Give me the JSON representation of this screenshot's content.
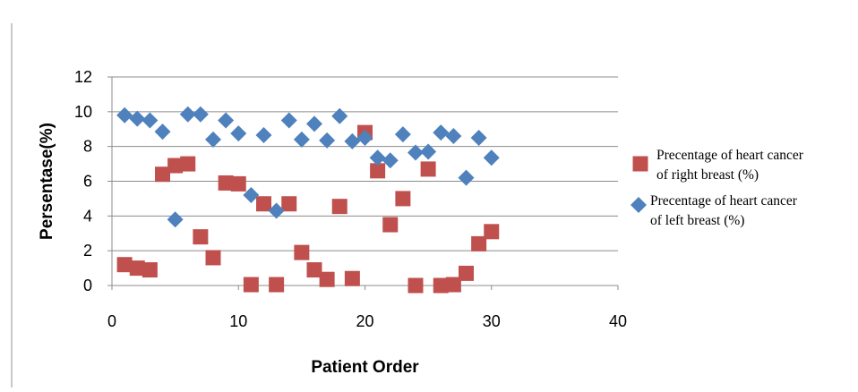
{
  "chart_data": {
    "type": "scatter",
    "title": "",
    "xlabel": "Patient Order",
    "ylabel": "Persentase(%)",
    "xlim": [
      0,
      40
    ],
    "ylim": [
      0,
      12
    ],
    "xticks": [
      0,
      10,
      20,
      30,
      40
    ],
    "yticks": [
      0,
      2,
      4,
      6,
      8,
      10,
      12
    ],
    "grid": true,
    "legend_position": "right",
    "series": [
      {
        "name": "Precentage of heart cancer of right breast (%)",
        "legend_lines": [
          "Precentage of heart cancer",
          "of right breast (%)"
        ],
        "marker": "square",
        "color": "#c0504d",
        "points": [
          [
            1,
            1.2
          ],
          [
            2,
            1.0
          ],
          [
            3,
            0.9
          ],
          [
            4,
            6.4
          ],
          [
            5,
            6.9
          ],
          [
            6,
            7.0
          ],
          [
            7,
            2.8
          ],
          [
            8,
            1.6
          ],
          [
            9,
            5.9
          ],
          [
            10,
            5.85
          ],
          [
            11,
            0.05
          ],
          [
            12,
            4.7
          ],
          [
            13,
            0.05
          ],
          [
            14,
            4.7
          ],
          [
            15,
            1.9
          ],
          [
            16,
            0.9
          ],
          [
            17,
            0.35
          ],
          [
            18,
            4.55
          ],
          [
            19,
            0.4
          ],
          [
            20,
            8.8
          ],
          [
            21,
            6.6
          ],
          [
            22,
            3.5
          ],
          [
            23,
            5.0
          ],
          [
            24,
            0.0
          ],
          [
            25,
            6.7
          ],
          [
            26,
            0.0
          ],
          [
            27,
            0.05
          ],
          [
            28,
            0.7
          ],
          [
            29,
            2.4
          ],
          [
            30,
            3.1
          ]
        ]
      },
      {
        "name": "Precentage of heart cancer of left breast (%)",
        "legend_lines": [
          "Precentage of heart cancer",
          "of left breast (%)"
        ],
        "marker": "diamond",
        "color": "#4f81bd",
        "points": [
          [
            1,
            9.8
          ],
          [
            2,
            9.6
          ],
          [
            3,
            9.5
          ],
          [
            4,
            8.85
          ],
          [
            5,
            3.8
          ],
          [
            6,
            9.85
          ],
          [
            7,
            9.85
          ],
          [
            8,
            8.4
          ],
          [
            9,
            9.5
          ],
          [
            10,
            8.75
          ],
          [
            11,
            5.2
          ],
          [
            12,
            8.65
          ],
          [
            13,
            4.3
          ],
          [
            14,
            9.5
          ],
          [
            15,
            8.4
          ],
          [
            16,
            9.3
          ],
          [
            17,
            8.35
          ],
          [
            18,
            9.75
          ],
          [
            19,
            8.3
          ],
          [
            20,
            8.5
          ],
          [
            21,
            7.35
          ],
          [
            22,
            7.2
          ],
          [
            23,
            8.7
          ],
          [
            24,
            7.65
          ],
          [
            25,
            7.7
          ],
          [
            26,
            8.8
          ],
          [
            27,
            8.6
          ],
          [
            28,
            6.2
          ],
          [
            29,
            8.5
          ],
          [
            30,
            7.35
          ]
        ]
      }
    ]
  }
}
